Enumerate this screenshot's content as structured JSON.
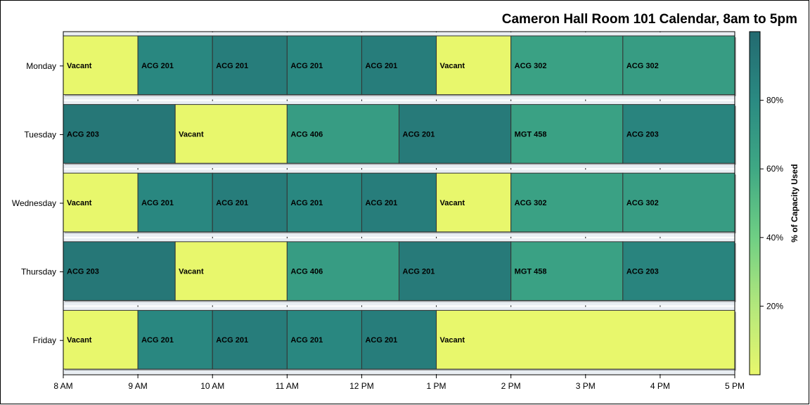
{
  "chart_data": {
    "type": "bar",
    "title": "Cameron Hall Room 101 Calendar, 8am to 5pm",
    "days": [
      "Monday",
      "Tuesday",
      "Wednesday",
      "Thursday",
      "Friday"
    ],
    "x_ticks": [
      "8 AM",
      "9 AM",
      "10 AM",
      "11 AM",
      "12 PM",
      "1 PM",
      "2 PM",
      "3 PM",
      "4 PM",
      "5 PM"
    ],
    "x_range_hours": [
      8,
      17
    ],
    "colorbar": {
      "label": "% of Capacity Used",
      "ticks": [
        "20%",
        "40%",
        "60%",
        "80%"
      ],
      "tick_values": [
        20,
        40,
        60,
        80
      ],
      "range": [
        0,
        100
      ],
      "colors": [
        "#e8f76c",
        "#b3e77c",
        "#6fcf84",
        "#3fa884",
        "#2a8a82",
        "#236a70"
      ]
    },
    "schedule": [
      {
        "day": "Monday",
        "blocks": [
          {
            "label": "Vacant",
            "start": 8,
            "end": 9,
            "pct": 0
          },
          {
            "label": "ACG 201",
            "start": 9,
            "end": 10,
            "pct": 82
          },
          {
            "label": "ACG 201",
            "start": 10,
            "end": 11,
            "pct": 88
          },
          {
            "label": "ACG 201",
            "start": 11,
            "end": 12,
            "pct": 82
          },
          {
            "label": "ACG 201",
            "start": 12,
            "end": 13,
            "pct": 88
          },
          {
            "label": "Vacant",
            "start": 13,
            "end": 14,
            "pct": 0
          },
          {
            "label": "ACG 302",
            "start": 14,
            "end": 15.5,
            "pct": 65
          },
          {
            "label": "ACG 302",
            "start": 15.5,
            "end": 17,
            "pct": 68
          }
        ]
      },
      {
        "day": "Tuesday",
        "blocks": [
          {
            "label": "ACG 203",
            "start": 8,
            "end": 9.5,
            "pct": 92
          },
          {
            "label": "Vacant",
            "start": 9.5,
            "end": 11,
            "pct": 0
          },
          {
            "label": "ACG 406",
            "start": 11,
            "end": 12.5,
            "pct": 68
          },
          {
            "label": "ACG 201",
            "start": 12.5,
            "end": 14,
            "pct": 90
          },
          {
            "label": "MGT 458",
            "start": 14,
            "end": 15.5,
            "pct": 65
          },
          {
            "label": "ACG 203",
            "start": 15.5,
            "end": 17,
            "pct": 84
          }
        ]
      },
      {
        "day": "Wednesday",
        "blocks": [
          {
            "label": "Vacant",
            "start": 8,
            "end": 9,
            "pct": 0
          },
          {
            "label": "ACG 201",
            "start": 9,
            "end": 10,
            "pct": 82
          },
          {
            "label": "ACG 201",
            "start": 10,
            "end": 11,
            "pct": 88
          },
          {
            "label": "ACG 201",
            "start": 11,
            "end": 12,
            "pct": 82
          },
          {
            "label": "ACG 201",
            "start": 12,
            "end": 13,
            "pct": 88
          },
          {
            "label": "Vacant",
            "start": 13,
            "end": 14,
            "pct": 0
          },
          {
            "label": "ACG 302",
            "start": 14,
            "end": 15.5,
            "pct": 65
          },
          {
            "label": "ACG 302",
            "start": 15.5,
            "end": 17,
            "pct": 68
          }
        ]
      },
      {
        "day": "Thursday",
        "blocks": [
          {
            "label": "ACG 203",
            "start": 8,
            "end": 9.5,
            "pct": 92
          },
          {
            "label": "Vacant",
            "start": 9.5,
            "end": 11,
            "pct": 0
          },
          {
            "label": "ACG 406",
            "start": 11,
            "end": 12.5,
            "pct": 68
          },
          {
            "label": "ACG 201",
            "start": 12.5,
            "end": 14,
            "pct": 90
          },
          {
            "label": "MGT 458",
            "start": 14,
            "end": 15.5,
            "pct": 65
          },
          {
            "label": "ACG 203",
            "start": 15.5,
            "end": 17,
            "pct": 84
          }
        ]
      },
      {
        "day": "Friday",
        "blocks": [
          {
            "label": "Vacant",
            "start": 8,
            "end": 9,
            "pct": 0
          },
          {
            "label": "ACG 201",
            "start": 9,
            "end": 10,
            "pct": 82
          },
          {
            "label": "ACG 201",
            "start": 10,
            "end": 11,
            "pct": 88
          },
          {
            "label": "ACG 201",
            "start": 11,
            "end": 12,
            "pct": 82
          },
          {
            "label": "ACG 201",
            "start": 12,
            "end": 13,
            "pct": 88
          },
          {
            "label": "Vacant",
            "start": 13,
            "end": 17,
            "pct": 0
          }
        ]
      }
    ]
  }
}
